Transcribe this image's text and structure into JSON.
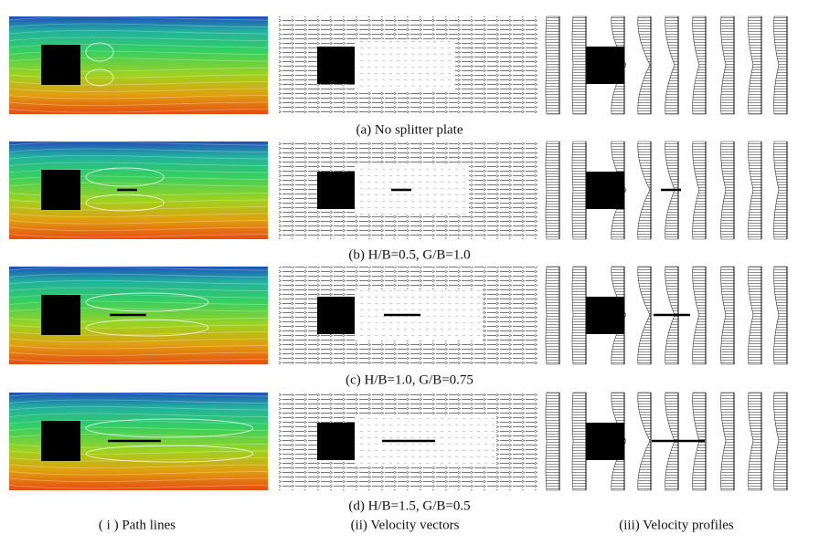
{
  "rows": [
    {
      "caption": "(a) No splitter plate"
    },
    {
      "caption": "(b) H/B=0.5, G/B=1.0"
    },
    {
      "caption": "(c) H/B=1.0, G/B=0.75"
    },
    {
      "caption": "(d) H/B=1.5, G/B=0.5"
    }
  ],
  "columns": [
    {
      "caption": "( i ) Path lines"
    },
    {
      "caption": "(ii) Velocity vectors"
    },
    {
      "caption": "(iii) Velocity profiles"
    }
  ]
}
